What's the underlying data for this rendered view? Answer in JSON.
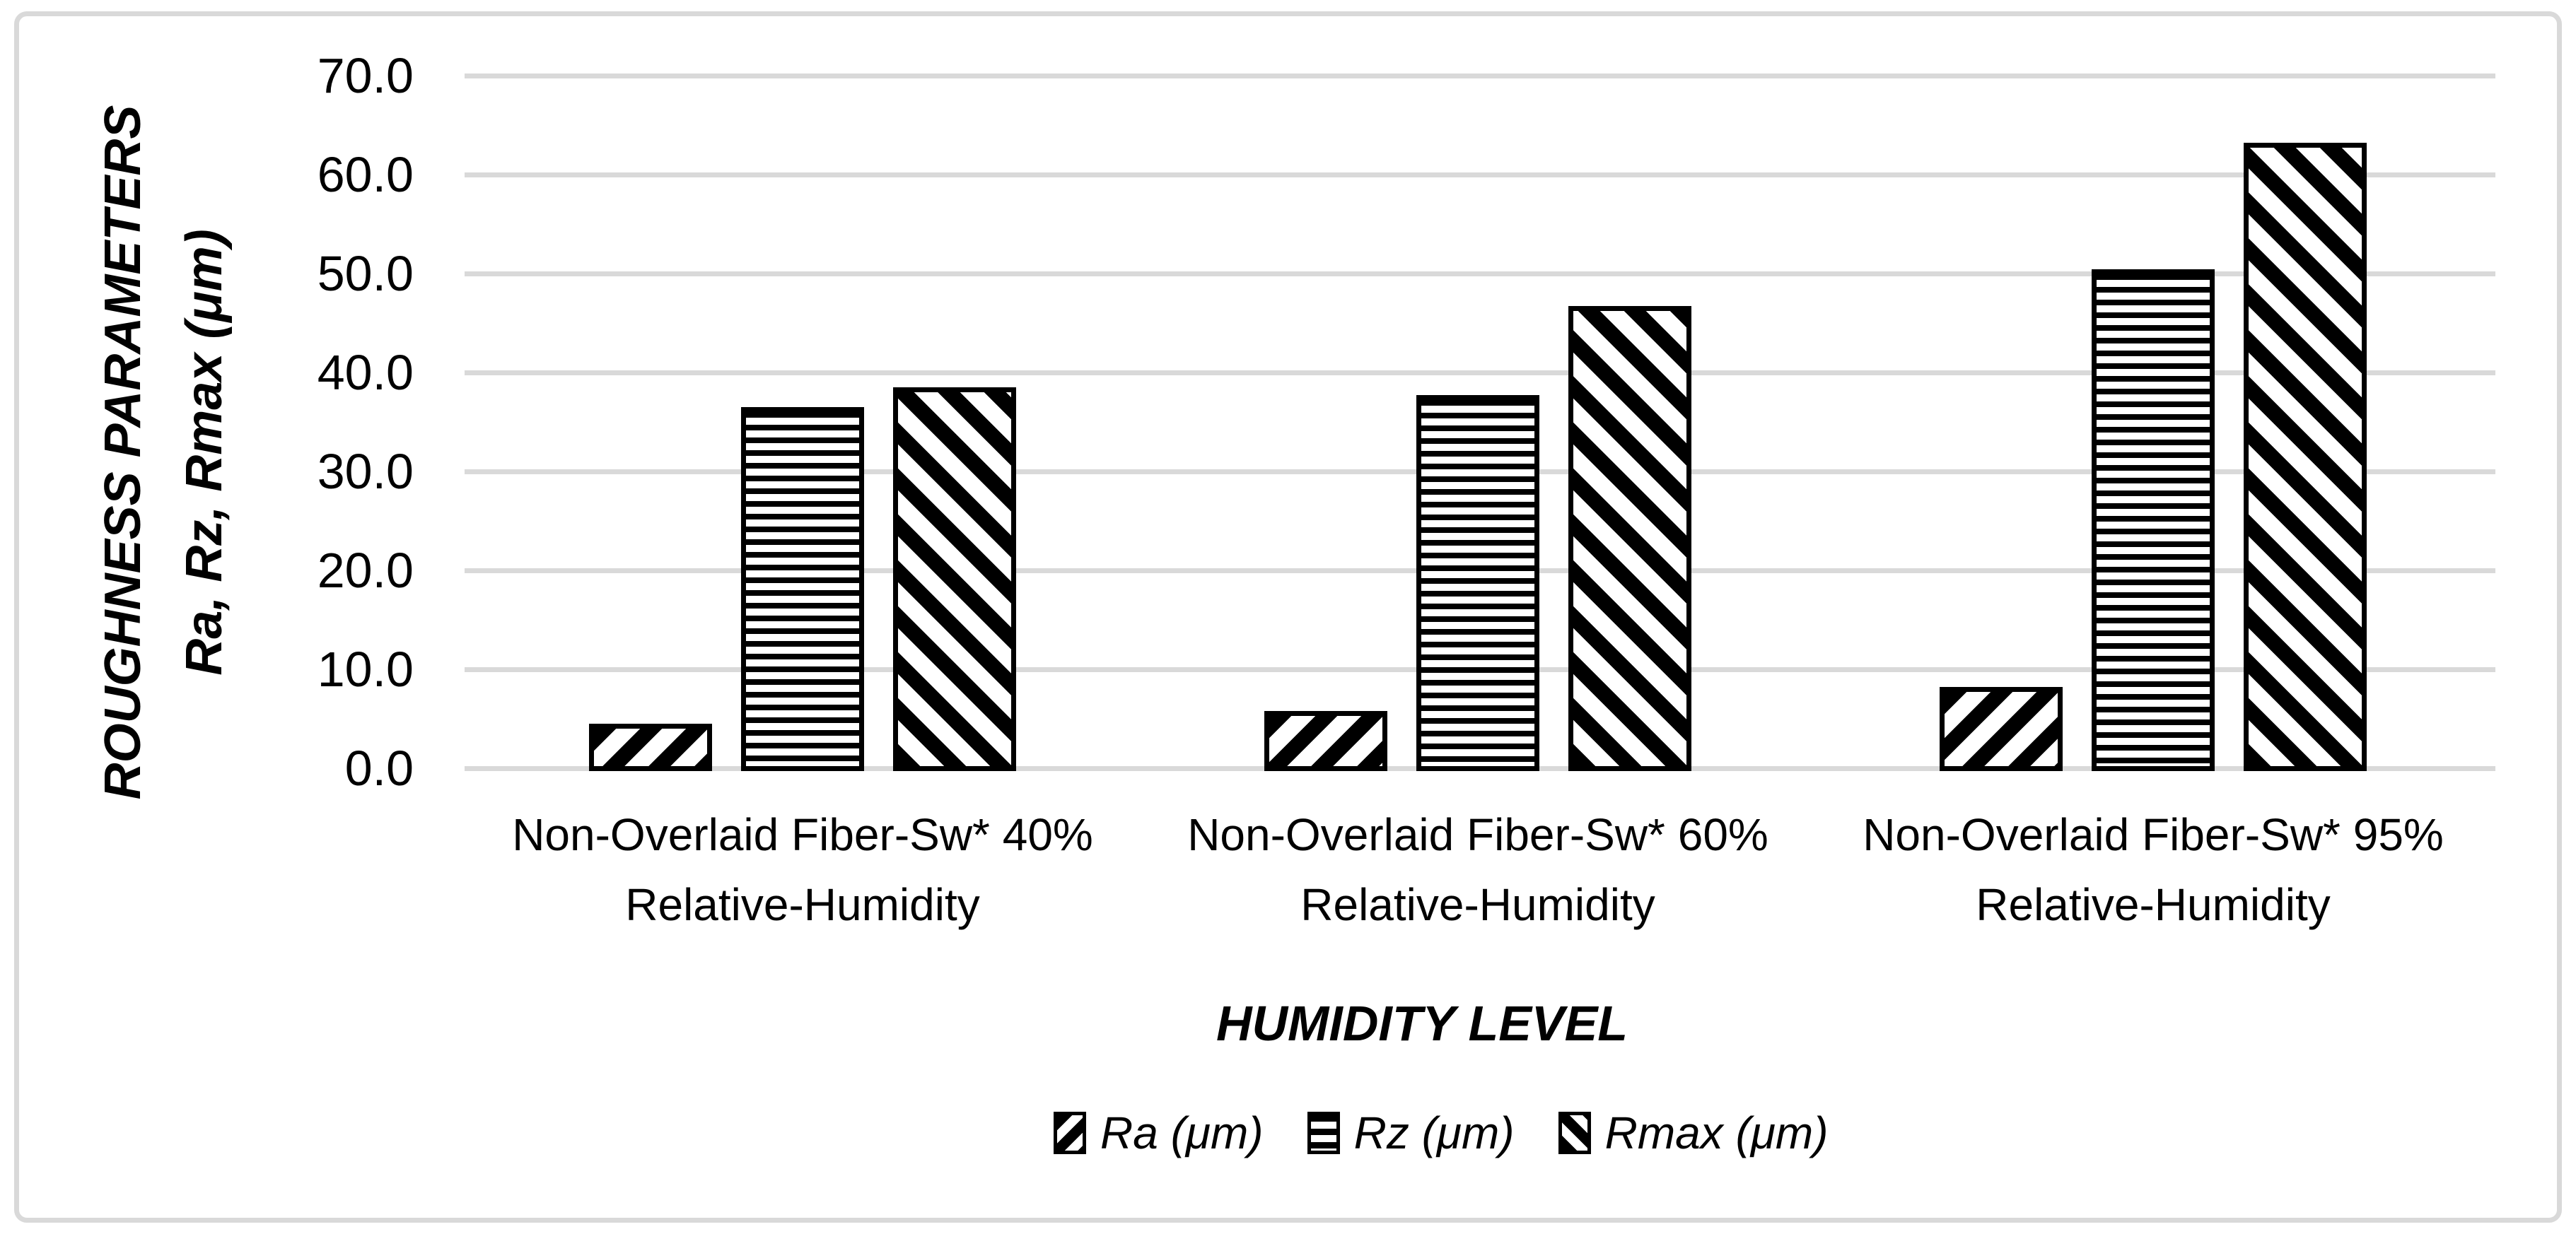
{
  "figure": {
    "background": "#ffffff",
    "border_color": "#d9d9d9",
    "gridline_color": "#d9d9d9",
    "bar_outline_color": "#000000"
  },
  "chart_data": {
    "type": "bar",
    "title": "",
    "xlabel": "HUMIDITY LEVEL",
    "ylabel_line1": "ROUGHNESS PARAMETERS",
    "ylabel_line2": "Ra, Rz, Rmax (μm)",
    "ylim": [
      0,
      70
    ],
    "ytick_step": 10,
    "ytick_labels": [
      "0.0",
      "10.0",
      "20.0",
      "30.0",
      "40.0",
      "50.0",
      "60.0",
      "70.0"
    ],
    "grid": true,
    "legend_position": "bottom",
    "categories": [
      {
        "line1": "Non-Overlaid Fiber-Sw* 40%",
        "line2": "Relative-Humidity"
      },
      {
        "line1": "Non-Overlaid Fiber-Sw* 60%",
        "line2": "Relative-Humidity"
      },
      {
        "line1": "Non-Overlaid Fiber-Sw* 95%",
        "line2": "Relative-Humidity"
      }
    ],
    "series": [
      {
        "name": "Ra (μm)",
        "key": "ra",
        "pattern": "diagonal-down",
        "values": [
          4.3,
          5.6,
          8.0
        ]
      },
      {
        "name": "Rz (μm)",
        "key": "rz",
        "pattern": "horizontal-lines",
        "values": [
          36.3,
          37.5,
          50.2
        ]
      },
      {
        "name": "Rmax (μm)",
        "key": "rmax",
        "pattern": "diagonal-up",
        "values": [
          38.3,
          46.5,
          63.0
        ]
      }
    ]
  }
}
